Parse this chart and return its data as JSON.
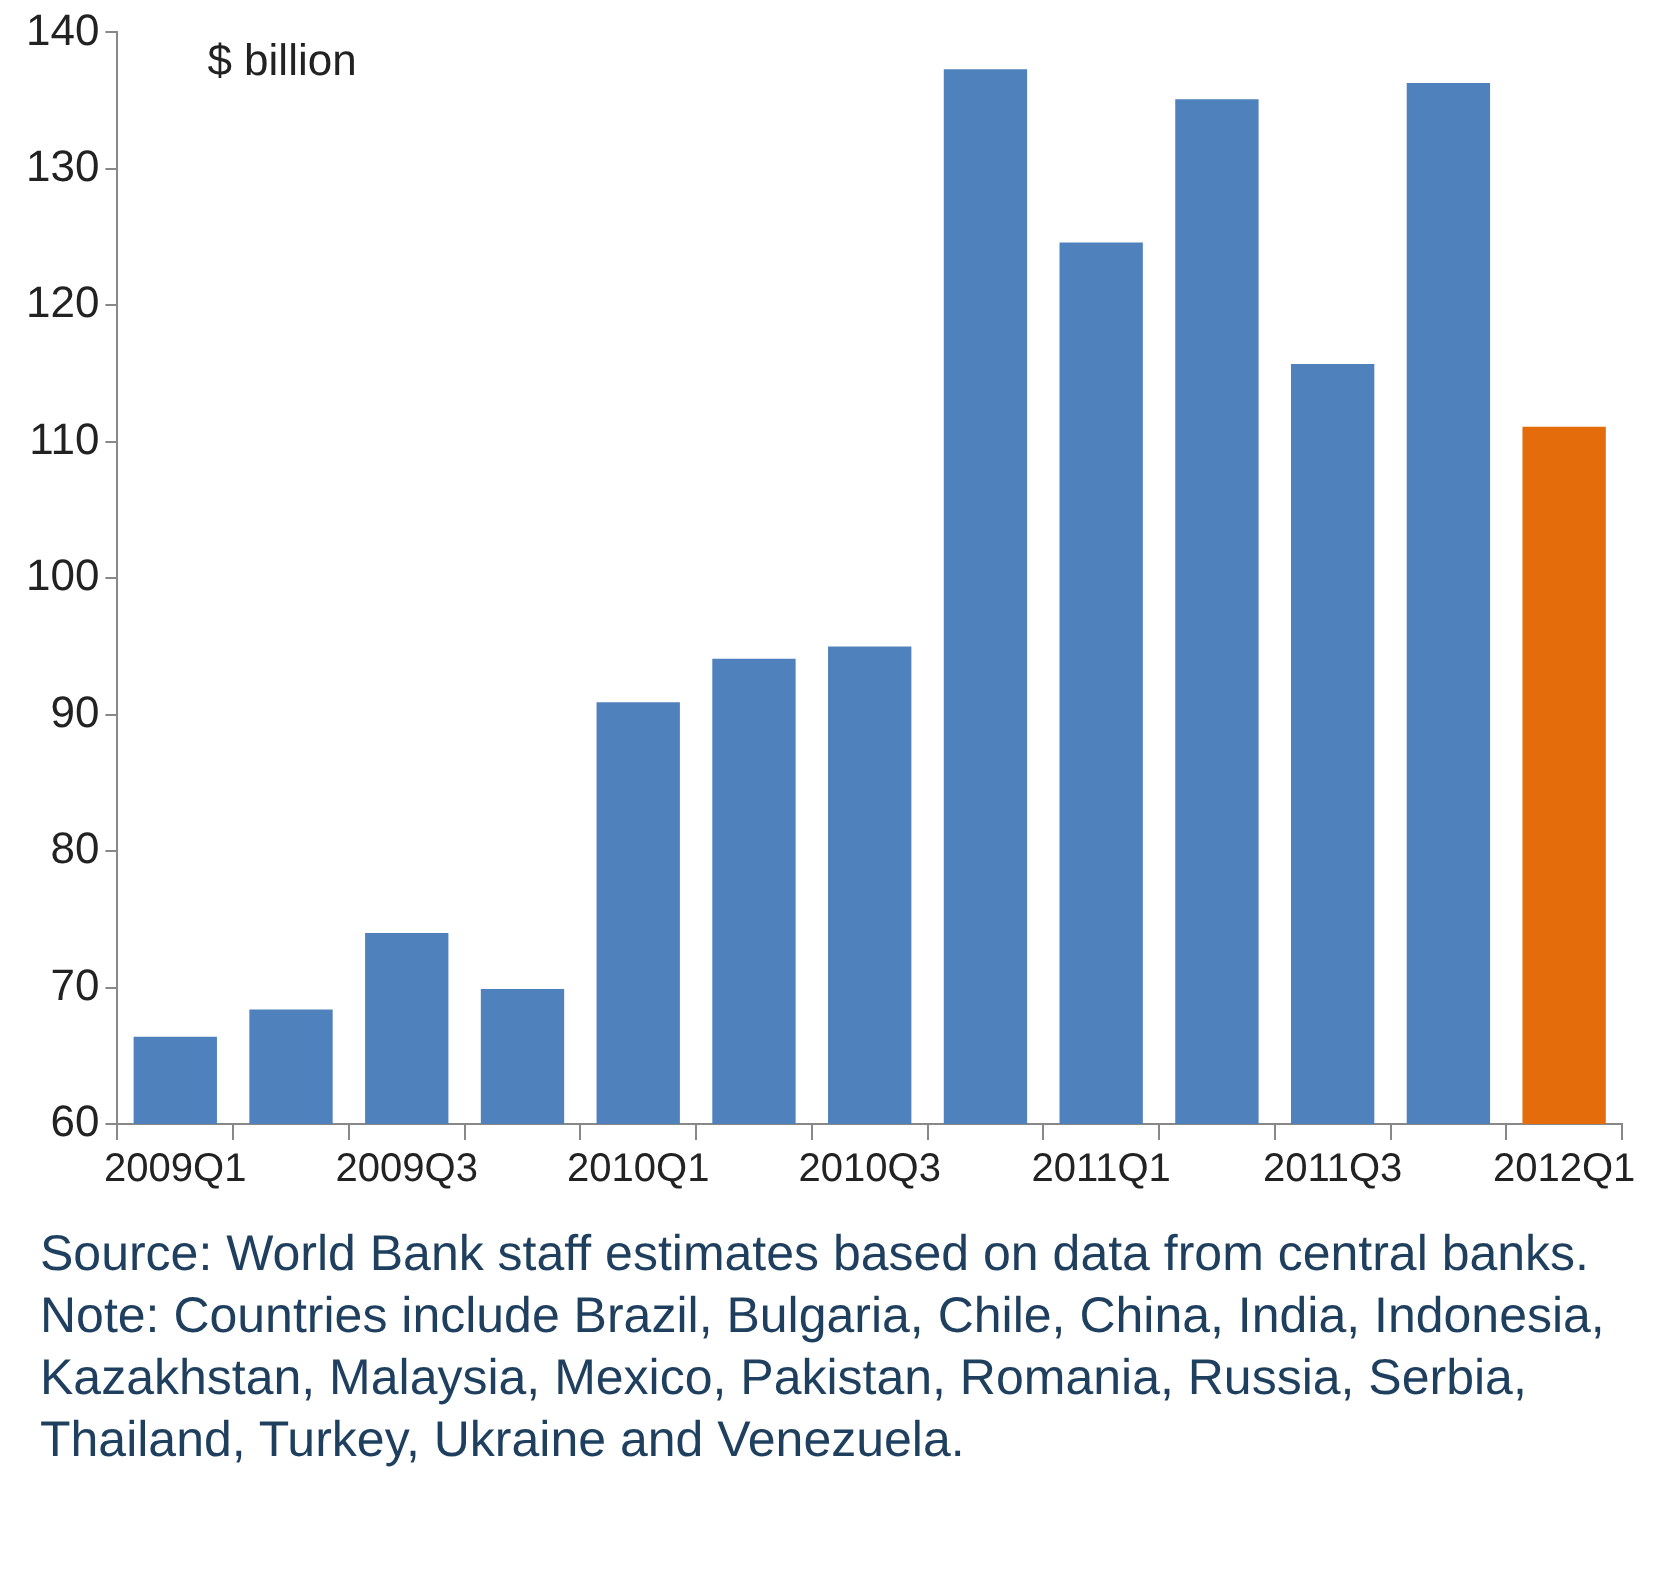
{
  "chart_data": {
    "type": "bar",
    "ylabel": "$ billion",
    "categories": [
      "2009Q1",
      null,
      "2009Q3",
      null,
      "2010Q1",
      null,
      "2010Q3",
      null,
      "2011Q1",
      null,
      "2011Q3",
      null,
      "2012Q1"
    ],
    "values": [
      66.4,
      68.4,
      74.0,
      69.9,
      90.9,
      94.1,
      95.0,
      137.3,
      124.6,
      135.1,
      115.7,
      136.3,
      111.1
    ],
    "colors": [
      "#4f81bd",
      "#4f81bd",
      "#4f81bd",
      "#4f81bd",
      "#4f81bd",
      "#4f81bd",
      "#4f81bd",
      "#4f81bd",
      "#4f81bd",
      "#4f81bd",
      "#4f81bd",
      "#4f81bd",
      "#e46c0a"
    ],
    "ylim": [
      60,
      140
    ],
    "yticks": [
      60,
      70,
      80,
      90,
      100,
      110,
      120,
      130,
      140
    ],
    "grid": false,
    "legend": false,
    "annotations": [
      "Source: World Bank staff estimates based on data from central banks. Note: Countries include Brazil, Bulgaria, Chile, China, India, Indonesia, Kazakhstan, Malaysia, Mexico, Pakistan, Romania, Russia, Serbia, Thailand, Turkey, Ukraine and Venezuela."
    ]
  }
}
